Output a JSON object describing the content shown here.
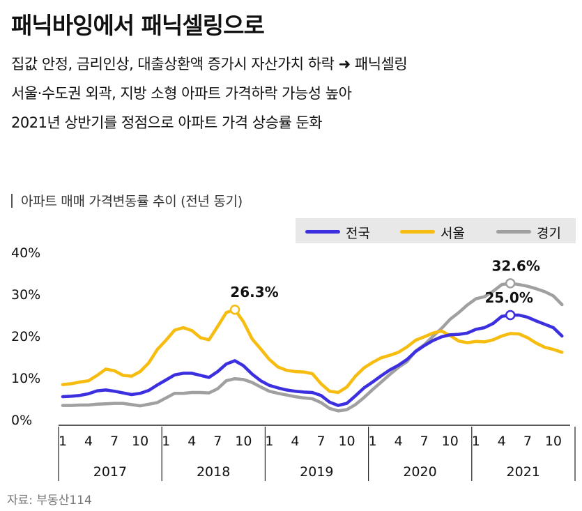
{
  "title": "패닉바잉에서 패닉셀링으로",
  "bullets": [
    "집값 안정, 금리인상, 대출상환액 증가시 자산가치 하락 ➜ 패닉셀링",
    "서울·수도권 외곽, 지방 소형 아파트 가격하락 가능성 높아",
    "2021년 상반기를 정점으로 아파트 가격 상승률 둔화"
  ],
  "chart_subtitle": "아파트 매매 가격변동률 추이 (전년 동기)",
  "source": "자료: 부동산114",
  "chart_data": {
    "type": "line",
    "subtitle": "아파트 매매 가격변동률 추이 (전년 동기)",
    "ylim": [
      0,
      40
    ],
    "yticks": [
      "0%",
      "10%",
      "20%",
      "30%",
      "40%"
    ],
    "xtick_labels": [
      "1",
      "4",
      "7",
      "10"
    ],
    "years": [
      "2017",
      "2018",
      "2019",
      "2020",
      "2021"
    ],
    "grid": false,
    "legend_position": "top-right",
    "x": [
      "2017-01",
      "2017-02",
      "2017-03",
      "2017-04",
      "2017-05",
      "2017-06",
      "2017-07",
      "2017-08",
      "2017-09",
      "2017-10",
      "2017-11",
      "2017-12",
      "2018-01",
      "2018-02",
      "2018-03",
      "2018-04",
      "2018-05",
      "2018-06",
      "2018-07",
      "2018-08",
      "2018-09",
      "2018-10",
      "2018-11",
      "2018-12",
      "2019-01",
      "2019-02",
      "2019-03",
      "2019-04",
      "2019-05",
      "2019-06",
      "2019-07",
      "2019-08",
      "2019-09",
      "2019-10",
      "2019-11",
      "2019-12",
      "2020-01",
      "2020-02",
      "2020-03",
      "2020-04",
      "2020-05",
      "2020-06",
      "2020-07",
      "2020-08",
      "2020-09",
      "2020-10",
      "2020-11",
      "2020-12",
      "2021-01",
      "2021-02",
      "2021-03",
      "2021-04",
      "2021-05",
      "2021-06",
      "2021-07",
      "2021-08",
      "2021-09",
      "2021-10",
      "2021-11"
    ],
    "series": [
      {
        "name": "전국",
        "color": "#3b2fe0",
        "values": [
          5.5,
          5.6,
          5.8,
          6.2,
          6.9,
          7.1,
          6.8,
          6.4,
          6.0,
          6.3,
          7.0,
          8.3,
          9.5,
          10.7,
          11.1,
          11.1,
          10.6,
          10.1,
          11.5,
          13.3,
          14.1,
          12.9,
          10.9,
          9.3,
          8.2,
          7.6,
          7.1,
          6.8,
          6.6,
          6.5,
          5.8,
          4.2,
          3.4,
          3.9,
          5.7,
          7.6,
          9.0,
          10.5,
          11.9,
          13.0,
          14.4,
          16.3,
          17.7,
          18.9,
          19.8,
          20.3,
          20.4,
          20.7,
          21.6,
          22.0,
          23.0,
          24.7,
          25.0,
          25.0,
          24.5,
          23.6,
          22.8,
          22.0,
          20.0
        ]
      },
      {
        "name": "서울",
        "color": "#f6bc10",
        "values": [
          8.4,
          8.6,
          9.0,
          9.3,
          10.6,
          12.1,
          11.7,
          10.6,
          10.4,
          11.5,
          13.6,
          16.8,
          19.0,
          21.4,
          22.0,
          21.3,
          19.6,
          19.1,
          22.3,
          25.6,
          26.3,
          23.4,
          19.3,
          16.9,
          14.4,
          12.6,
          11.8,
          11.5,
          11.4,
          11.0,
          8.6,
          6.8,
          6.5,
          7.8,
          10.4,
          12.4,
          13.7,
          14.8,
          15.4,
          16.1,
          17.4,
          19.0,
          19.8,
          20.7,
          21.2,
          20.1,
          18.8,
          18.4,
          18.7,
          18.6,
          19.1,
          20.0,
          20.6,
          20.5,
          19.6,
          18.3,
          17.3,
          16.8,
          16.1
        ]
      },
      {
        "name": "경기",
        "color": "#a0a0a0",
        "values": [
          3.4,
          3.4,
          3.5,
          3.5,
          3.7,
          3.8,
          3.9,
          3.9,
          3.6,
          3.3,
          3.7,
          4.1,
          5.2,
          6.3,
          6.3,
          6.5,
          6.5,
          6.4,
          7.4,
          9.3,
          9.8,
          9.6,
          8.9,
          7.8,
          6.8,
          6.3,
          5.9,
          5.5,
          5.2,
          5.0,
          4.1,
          2.7,
          2.1,
          2.4,
          3.6,
          5.3,
          7.2,
          9.0,
          10.8,
          12.5,
          13.9,
          16.4,
          17.9,
          19.9,
          21.8,
          24.0,
          25.6,
          27.4,
          28.9,
          29.4,
          30.7,
          32.3,
          32.6,
          32.3,
          31.9,
          31.3,
          30.6,
          29.6,
          27.5
        ]
      }
    ],
    "annotations": [
      {
        "series": "서울",
        "x": "2018-09",
        "value": 26.3,
        "label": "26.3%"
      },
      {
        "series": "경기",
        "x": "2021-05",
        "value": 32.6,
        "label": "32.6%"
      },
      {
        "series": "전국",
        "x": "2021-05",
        "value": 25.0,
        "label": "25.0%"
      }
    ]
  }
}
